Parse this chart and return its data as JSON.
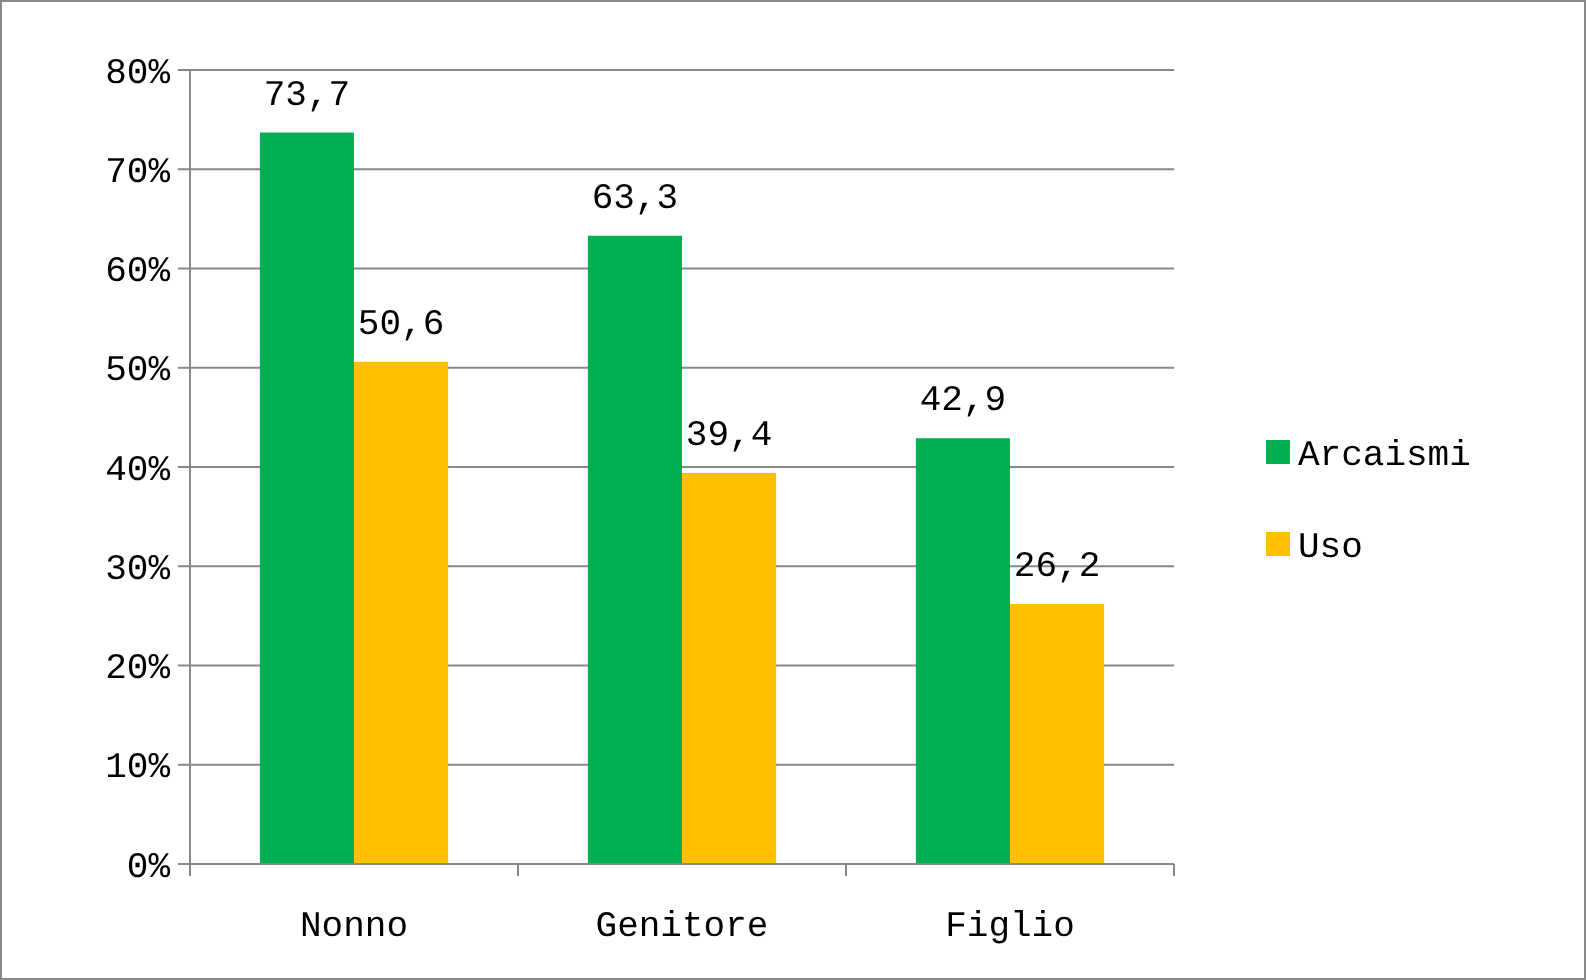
{
  "chart_data": {
    "type": "bar",
    "categories": [
      "Nonno",
      "Genitore",
      "Figlio"
    ],
    "series": [
      {
        "name": "Arcaismi",
        "color": "#00b050",
        "values": [
          73.7,
          63.3,
          42.9
        ],
        "value_labels": [
          "73,7",
          "63,3",
          "42,9"
        ]
      },
      {
        "name": "Uso",
        "color": "#ffc000",
        "values": [
          50.6,
          39.4,
          26.2
        ],
        "value_labels": [
          "50,6",
          "39,4",
          "26,2"
        ]
      }
    ],
    "ylim": [
      0,
      80
    ],
    "yticks": [
      {
        "value": 0,
        "label": "0%"
      },
      {
        "value": 10,
        "label": "10%"
      },
      {
        "value": 20,
        "label": "20%"
      },
      {
        "value": 30,
        "label": "30%"
      },
      {
        "value": 40,
        "label": "40%"
      },
      {
        "value": 50,
        "label": "50%"
      },
      {
        "value": 60,
        "label": "60%"
      },
      {
        "value": 70,
        "label": "70%"
      },
      {
        "value": 80,
        "label": "80%"
      }
    ],
    "grid": "y",
    "legend": "right"
  }
}
